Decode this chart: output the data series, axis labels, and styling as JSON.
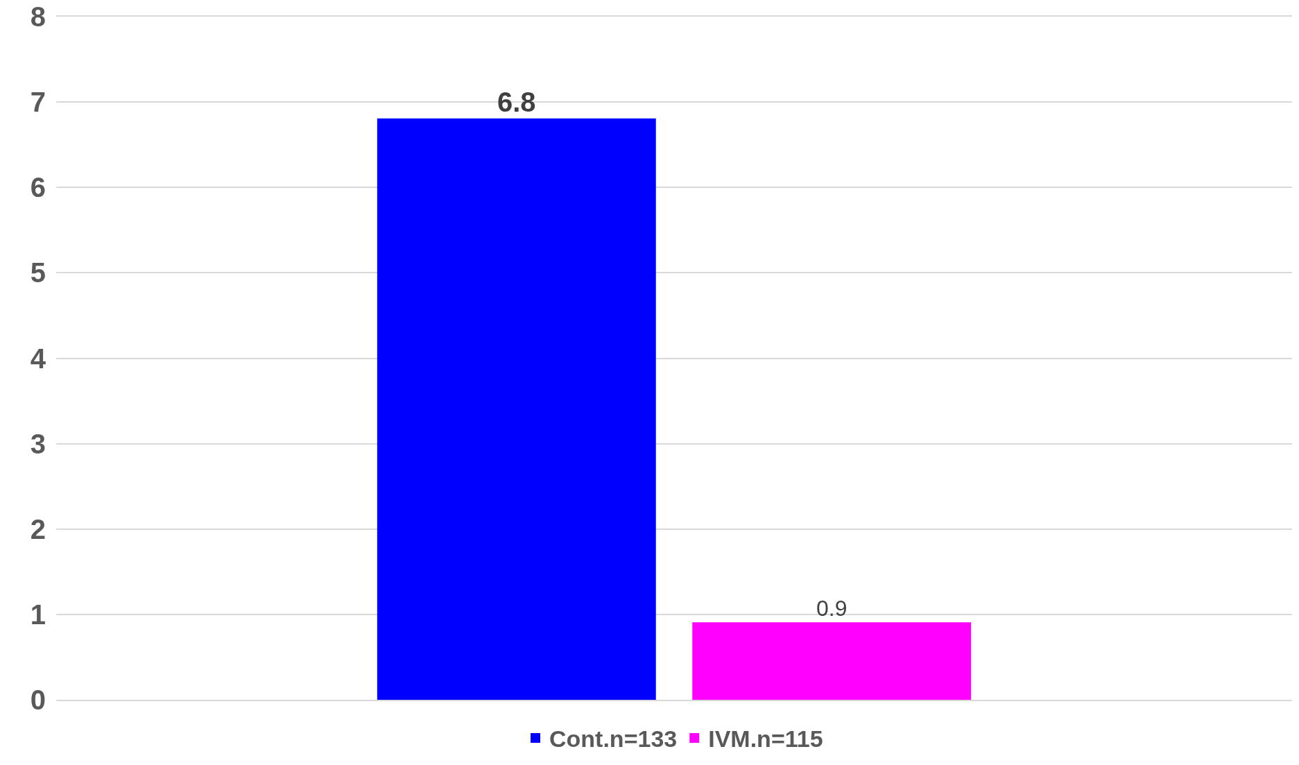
{
  "chart_data": {
    "type": "bar",
    "categories": [
      null
    ],
    "series": [
      {
        "name": "Cont.n=133",
        "color": "#0000ff",
        "values": [
          6.8
        ]
      },
      {
        "name": "IVM.n=115",
        "color": "#ff00ff",
        "values": [
          0.9
        ]
      }
    ],
    "ylim": [
      0,
      8
    ],
    "yticks": [
      0,
      1,
      2,
      3,
      4,
      5,
      6,
      7,
      8
    ],
    "grid": "y",
    "legend": "bottom",
    "data_labels": true,
    "tick_labels": "y"
  }
}
